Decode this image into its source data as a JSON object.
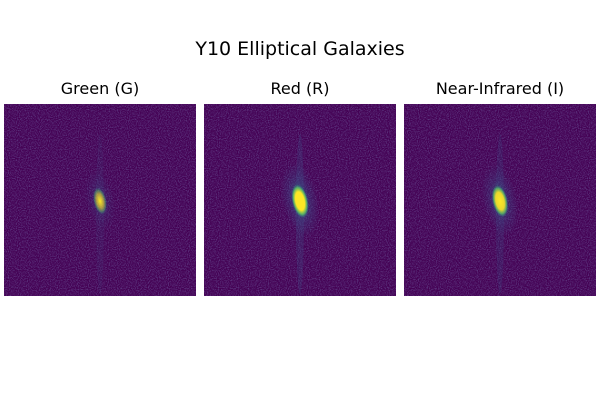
{
  "figure": {
    "title": "Y10 Elliptical Galaxies"
  },
  "colormap": {
    "background": "#440154",
    "low": "#3b528b",
    "mid": "#21918c",
    "high": "#5ec962",
    "peak": "#fde725"
  },
  "panels": [
    {
      "title": "Green (G)",
      "core_brightness": 0.55,
      "halo_brightness": 0.35
    },
    {
      "title": "Red (R)",
      "core_brightness": 1.0,
      "halo_brightness": 0.7
    },
    {
      "title": "Near-Infrared (I)",
      "core_brightness": 0.9,
      "halo_brightness": 0.6
    }
  ]
}
